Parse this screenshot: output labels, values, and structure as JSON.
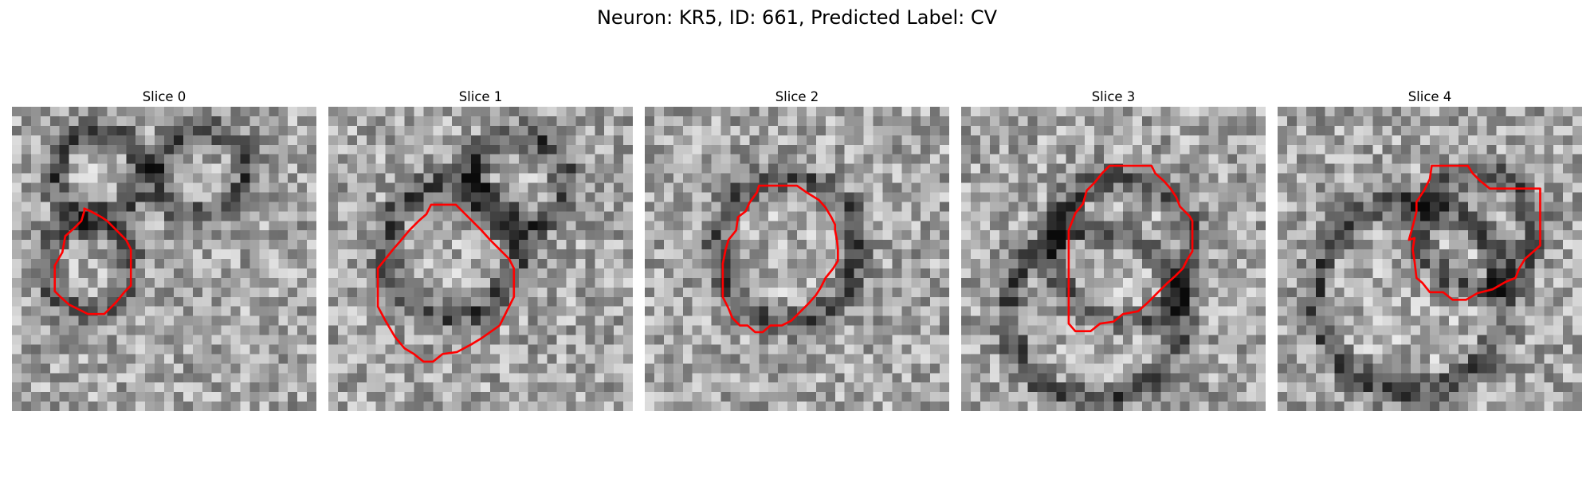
{
  "figure": {
    "title": "Neuron: KR5, ID: 661, Predicted Label: CV"
  },
  "colors": {
    "contour": "#ff0000",
    "background": "#ffffff"
  },
  "panels": [
    {
      "title": "Slice 0",
      "seed": 11
    },
    {
      "title": "Slice 1",
      "seed": 23
    },
    {
      "title": "Slice 2",
      "seed": 37
    },
    {
      "title": "Slice 3",
      "seed": 51
    },
    {
      "title": "Slice 4",
      "seed": 67
    }
  ]
}
